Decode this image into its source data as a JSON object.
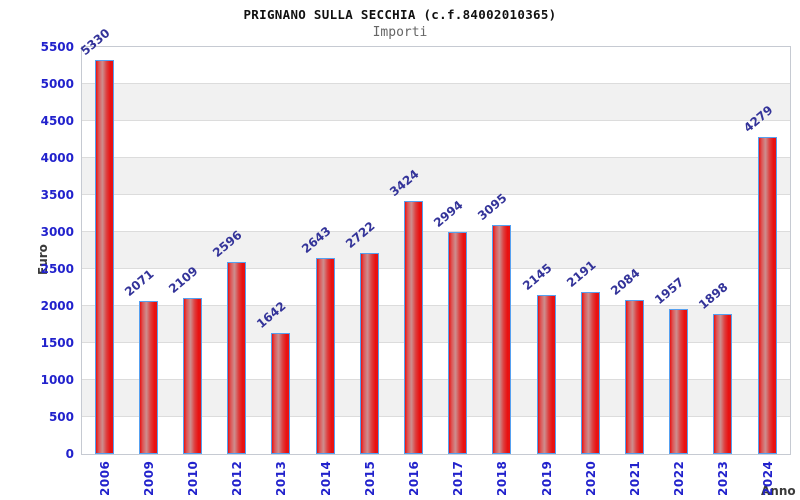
{
  "chart_data": {
    "type": "bar",
    "title": "PRIGNANO SULLA SECCHIA (c.f.84002010365)",
    "subtitle": "Importi",
    "ylabel": "Euro",
    "xlabel": "Anno",
    "categories": [
      "2006",
      "2009",
      "2010",
      "2012",
      "2013",
      "2014",
      "2015",
      "2016",
      "2017",
      "2018",
      "2019",
      "2020",
      "2021",
      "2022",
      "2023",
      "2024"
    ],
    "values": [
      5330,
      2071,
      2109,
      2596,
      1642,
      2643,
      2722,
      3424,
      2994,
      3095,
      2145,
      2191,
      2084,
      1957,
      1898,
      4279
    ],
    "ylim": [
      0,
      5500
    ],
    "y_ticks": [
      0,
      500,
      1000,
      1500,
      2000,
      2500,
      3000,
      3500,
      4000,
      4500,
      5000,
      5500
    ],
    "grid": true,
    "legend": false,
    "bar_value_labels_rotated": true,
    "x_tick_labels_rotated": true,
    "colors": {
      "bar_fill": "#e81212",
      "bar_highlight": "#cd8f8f",
      "bar_border": "#55a0f0",
      "tick_label": "#2222cc",
      "value_label": "#333399",
      "axis_title": "#3a3a3a",
      "band_gray": "#f1f1f1",
      "gridline": "#dcdcdc",
      "title": "#111111",
      "subtitle": "#666666"
    }
  }
}
